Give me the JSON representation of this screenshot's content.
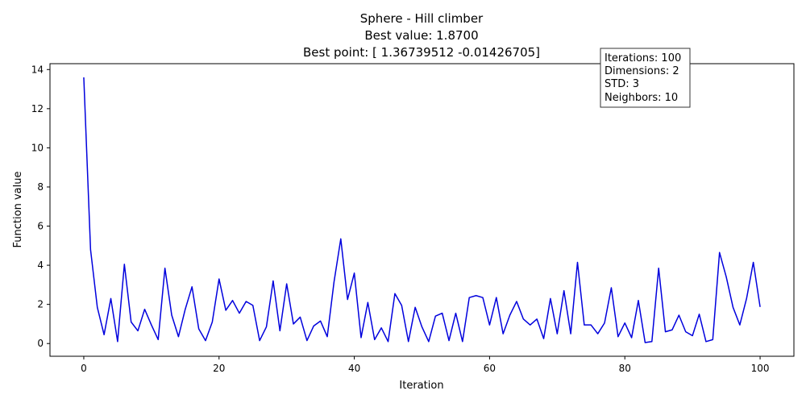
{
  "chart_data": {
    "type": "line",
    "title_lines": [
      "Sphere - Hill climber",
      "Best value: 1.8700",
      "Best point: [ 1.36739512 -0.01426705]"
    ],
    "xlabel": "Iteration",
    "ylabel": "Function value",
    "xlim": [
      -5,
      105
    ],
    "ylim": [
      -0.65,
      14.3
    ],
    "xticks": [
      0,
      20,
      40,
      60,
      80,
      100
    ],
    "yticks": [
      0,
      2,
      4,
      6,
      8,
      10,
      12,
      14
    ],
    "grid": false,
    "line_color": "#0000dd",
    "info_box": {
      "placement": "top-right",
      "lines": [
        "Iterations: 100",
        "Dimensions: 2",
        "STD: 3",
        "Neighbors: 10"
      ]
    },
    "series": [
      {
        "x": [
          0,
          1,
          2,
          3,
          4,
          5,
          6,
          7,
          8,
          9,
          10,
          11,
          12,
          13,
          14,
          15,
          16,
          17,
          18,
          19,
          20,
          21,
          22,
          23,
          24,
          25,
          26,
          27,
          28,
          29,
          30,
          31,
          32,
          33,
          34,
          35,
          36,
          37,
          38,
          39,
          40,
          41,
          42,
          43,
          44,
          45,
          46,
          47,
          48,
          49,
          50,
          51,
          52,
          53,
          54,
          55,
          56,
          57,
          58,
          59,
          60,
          61,
          62,
          63,
          64,
          65,
          66,
          67,
          68,
          69,
          70,
          71,
          72,
          73,
          74,
          75,
          76,
          77,
          78,
          79,
          80,
          81,
          82,
          83,
          84,
          85,
          86,
          87,
          88,
          89,
          90,
          91,
          92,
          93,
          94,
          95,
          96,
          97,
          98,
          99,
          100
        ],
        "values": [
          13.6,
          4.8,
          1.85,
          0.45,
          2.3,
          0.1,
          4.05,
          1.1,
          0.65,
          1.75,
          0.95,
          0.2,
          3.85,
          1.45,
          0.35,
          1.75,
          2.9,
          0.75,
          0.15,
          1.1,
          3.3,
          1.7,
          2.2,
          1.55,
          2.15,
          1.95,
          0.15,
          0.85,
          3.2,
          0.65,
          3.05,
          1.0,
          1.35,
          0.15,
          0.9,
          1.15,
          0.35,
          3.15,
          5.35,
          2.25,
          3.6,
          0.3,
          2.1,
          0.2,
          0.8,
          0.1,
          2.55,
          1.95,
          0.1,
          1.85,
          0.85,
          0.1,
          1.4,
          1.55,
          0.15,
          1.55,
          0.1,
          2.35,
          2.45,
          2.35,
          0.95,
          2.35,
          0.5,
          1.45,
          2.15,
          1.25,
          0.95,
          1.25,
          0.25,
          2.3,
          0.5,
          2.7,
          0.5,
          4.15,
          0.95,
          0.95,
          0.5,
          1.05,
          2.85,
          0.35,
          1.05,
          0.3,
          2.2,
          0.05,
          0.1,
          3.85,
          0.6,
          0.7,
          1.45,
          0.6,
          0.4,
          1.5,
          0.1,
          0.2,
          4.65,
          3.4,
          1.85,
          0.95,
          2.3,
          4.15,
          1.87
        ]
      }
    ]
  }
}
